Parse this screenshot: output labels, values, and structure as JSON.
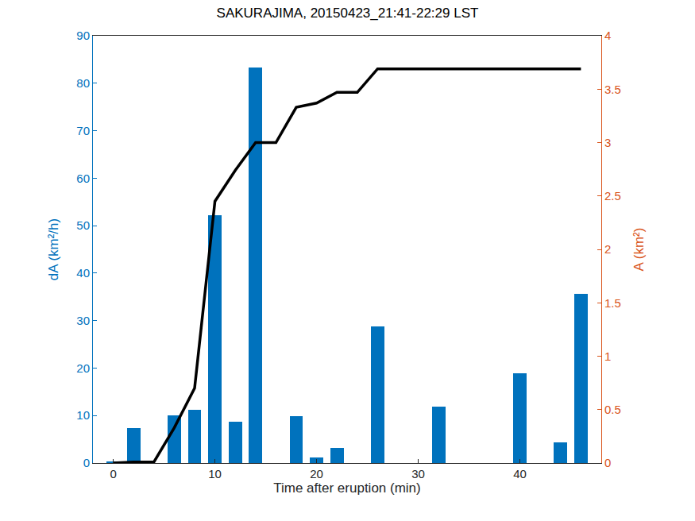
{
  "chart_data": {
    "type": "bar",
    "title": "SAKURAJIMA, 20150423_21:41-22:29 LST",
    "x_label": "Time after eruption (min)",
    "y_label": "dA (km²/h)",
    "y2_label": "A (km²)",
    "x": [
      0,
      2,
      4,
      6,
      8,
      10,
      12,
      14,
      16,
      18,
      20,
      22,
      24,
      26,
      28,
      30,
      32,
      34,
      36,
      38,
      40,
      42,
      44,
      46
    ],
    "series": [
      {
        "type": "bar",
        "color": "#0072BD",
        "values": [
          0.3,
          7.4,
          0,
          10,
          11.2,
          52.2,
          8.7,
          83.3,
          0,
          9.9,
          1.1,
          3.2,
          0,
          28.7,
          0,
          0,
          11.9,
          0,
          0,
          0,
          18.9,
          0,
          4.3,
          35.6
        ]
      },
      {
        "type": "line",
        "axis": "y2",
        "color": "#000000",
        "line_style": "solid",
        "values": [
          0,
          0.01,
          0.01,
          0.33,
          0.7,
          2.45,
          2.74,
          3.0,
          3.0,
          3.33,
          3.37,
          3.47,
          3.47,
          3.69,
          3.69,
          3.69,
          3.69,
          3.69,
          3.69,
          3.69,
          3.69,
          3.69,
          3.69,
          3.69
        ]
      }
    ],
    "xlim": [
      -2,
      48
    ],
    "xticks": [
      0,
      10,
      20,
      30,
      40
    ],
    "ylim": [
      0,
      90
    ],
    "yticks": [
      0,
      10,
      20,
      30,
      40,
      50,
      60,
      70,
      80,
      90
    ],
    "y2lim": [
      0,
      4
    ],
    "y2ticks": [
      0,
      0.5,
      1,
      1.5,
      2,
      2.5,
      3,
      3.5,
      4
    ],
    "y_color": "#0072BD",
    "y2_color": "#D95319",
    "grid": false
  }
}
